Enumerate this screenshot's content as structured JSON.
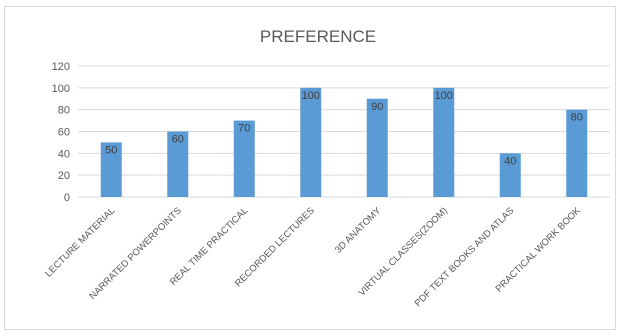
{
  "chart_data": {
    "type": "bar",
    "title": "PREFERENCE",
    "categories": [
      "LECTURE MATERIAL",
      "NARRATED POWERPOINTS",
      "REAL TIME PRACTICAL",
      "RECORDED LECTURES",
      "3D ANATOMY",
      "VIRTUAL CLASSES(ZOOM)",
      "PDF TEXT BOOKS AND ATLAS",
      "PRACTICAL WORK BOOK"
    ],
    "values": [
      50,
      60,
      70,
      100,
      90,
      100,
      40,
      80
    ],
    "data_labels": [
      "50",
      "60",
      "70",
      "100",
      "90",
      "100",
      "40",
      "80"
    ],
    "y_ticks": [
      "0",
      "20",
      "40",
      "60",
      "80",
      "100",
      "120"
    ],
    "ylim": [
      0,
      120
    ],
    "xlabel": "",
    "ylabel": "",
    "grid": true,
    "legend": "none",
    "bar_color": "#5b9bd5",
    "grid_color": "#d9d9d9"
  }
}
